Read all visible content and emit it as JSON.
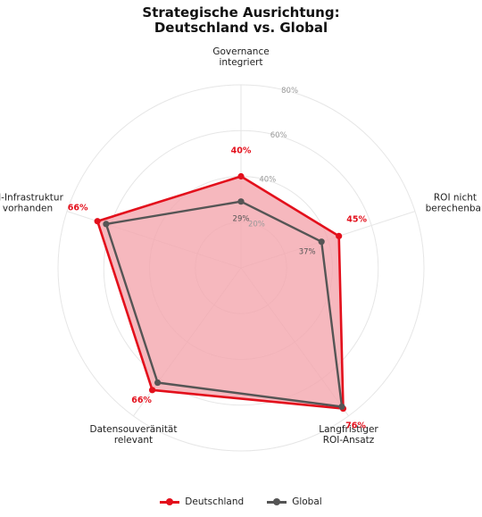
{
  "chart_data": {
    "type": "radar",
    "title_line1": "Strategische Ausrichtung:",
    "title_line2": "Deutschland vs. Global",
    "categories": [
      [
        "Governance",
        "integriert"
      ],
      [
        "ROI nicht",
        "berechenbar"
      ],
      [
        "Langfristiger",
        "ROI-Ansatz"
      ],
      [
        "Datensouveränität",
        "relevant"
      ],
      [
        "KI-Infrastruktur",
        "vorhanden"
      ]
    ],
    "rlim": [
      0,
      80
    ],
    "ring_values": [
      20,
      40,
      60,
      80
    ],
    "ring_labels": [
      "20%",
      "40%",
      "60%",
      "80%"
    ],
    "series": [
      {
        "name": "Deutschland",
        "color": "#e3101c",
        "fill": "#f4a6ae",
        "values": [
          40,
          45,
          76,
          66,
          66
        ],
        "labels": [
          "40%",
          "45%",
          "76%",
          "66%",
          "66%"
        ]
      },
      {
        "name": "Global",
        "color": "#555555",
        "values": [
          29,
          37,
          75,
          62,
          62
        ],
        "labels": [
          "29%",
          "37%"
        ]
      }
    ],
    "grid": true,
    "legend_position": "bottom"
  }
}
